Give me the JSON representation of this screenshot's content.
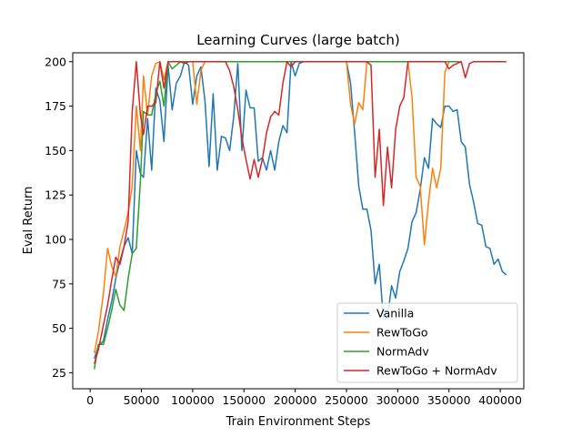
{
  "chart_data": {
    "type": "line",
    "title": "Learning Curves (large batch)",
    "xlabel": "Train Environment Steps",
    "ylabel": "Eval Return",
    "xlim": [
      -17000,
      423000
    ],
    "ylim": [
      16,
      205
    ],
    "xticks": [
      0,
      50000,
      100000,
      150000,
      200000,
      250000,
      300000,
      350000,
      400000
    ],
    "yticks": [
      25,
      50,
      75,
      100,
      125,
      150,
      175,
      200
    ],
    "grid": false,
    "legend_position": "lower-right",
    "series": [
      {
        "name": "Vanilla",
        "color": "#1f77b4",
        "x": [
          4000,
          8000,
          13000,
          17000,
          21000,
          25000,
          29000,
          33000,
          37000,
          41000,
          45000,
          49000,
          52000,
          56000,
          60000,
          64000,
          68000,
          72000,
          76000,
          80000,
          84000,
          88000,
          92000,
          96000,
          100000,
          104000,
          108000,
          112000,
          116000,
          120000,
          124000,
          128000,
          132000,
          136000,
          140000,
          144000,
          148000,
          152000,
          156000,
          160000,
          164000,
          168000,
          172000,
          176000,
          180000,
          184000,
          188000,
          192000,
          196000,
          200000,
          204000,
          208000,
          250000,
          254000,
          258000,
          262000,
          266000,
          270000,
          274000,
          278000,
          282000,
          286000,
          290000,
          294000,
          298000,
          302000,
          306000,
          310000,
          314000,
          318000,
          322000,
          326000,
          330000,
          334000,
          338000,
          342000,
          346000,
          350000,
          354000,
          358000,
          362000,
          366000,
          370000,
          374000,
          378000,
          382000,
          386000,
          390000,
          394000,
          398000,
          402000,
          406000
        ],
        "y": [
          33,
          40,
          43,
          55,
          65,
          78,
          88,
          96,
          101,
          92,
          150,
          137,
          135,
          168,
          139,
          185,
          178,
          155,
          198,
          173,
          188,
          192,
          200,
          198,
          176,
          192,
          197,
          178,
          141,
          182,
          139,
          158,
          157,
          150,
          169,
          199,
          150,
          184,
          174,
          174,
          144,
          146,
          139,
          150,
          139,
          155,
          164,
          160,
          200,
          192,
          199,
          200,
          200,
          188,
          160,
          130,
          117,
          117,
          105,
          75,
          86,
          55,
          56,
          74,
          67,
          82,
          88,
          95,
          110,
          115,
          128,
          146,
          140,
          168,
          165,
          163,
          175,
          175,
          172,
          173,
          155,
          152,
          131,
          121,
          109,
          108,
          96,
          95,
          86,
          89,
          82,
          80
        ]
      },
      {
        "name": "RewToGo",
        "color": "#ff7f0e",
        "x": [
          4000,
          8000,
          13000,
          17000,
          21000,
          25000,
          29000,
          33000,
          37000,
          41000,
          45000,
          49000,
          52000,
          56000,
          60000,
          64000,
          68000,
          72000,
          76000,
          80000,
          84000,
          88000,
          92000,
          96000,
          100000,
          104000,
          108000,
          112000,
          116000,
          250000,
          254000,
          258000,
          262000,
          266000,
          270000,
          274000,
          278000,
          282000,
          286000,
          290000,
          294000,
          298000,
          302000,
          306000,
          310000,
          314000,
          318000,
          322000,
          326000,
          330000,
          334000,
          338000,
          342000,
          346000,
          350000,
          354000,
          358000,
          362000
        ],
        "y": [
          36,
          48,
          70,
          95,
          85,
          79,
          96,
          105,
          115,
          130,
          175,
          150,
          192,
          170,
          192,
          199,
          200,
          190,
          200,
          200,
          200,
          200,
          200,
          200,
          200,
          176,
          195,
          200,
          200,
          200,
          176,
          165,
          177,
          173,
          200,
          200,
          200,
          200,
          200,
          200,
          200,
          200,
          200,
          200,
          200,
          180,
          135,
          130,
          97,
          121,
          140,
          129,
          140,
          194,
          200,
          200,
          200,
          200
        ]
      },
      {
        "name": "NormAdv",
        "color": "#2ca02c",
        "x": [
          4000,
          8000,
          13000,
          17000,
          21000,
          25000,
          29000,
          33000,
          37000,
          41000,
          45000,
          49000,
          52000,
          56000,
          60000,
          64000,
          68000,
          72000,
          76000,
          80000,
          84000,
          88000,
          92000,
          96000,
          100000,
          104000,
          108000,
          112000,
          116000,
          120000,
          200000,
          250000,
          300000,
          350000,
          360000
        ],
        "y": [
          27,
          41,
          41,
          50,
          60,
          72,
          63,
          60,
          78,
          92,
          95,
          133,
          172,
          170,
          170,
          182,
          189,
          175,
          200,
          196,
          198,
          200,
          200,
          200,
          200,
          200,
          200,
          200,
          200,
          200,
          200,
          200,
          200,
          200,
          200
        ]
      },
      {
        "name": "RewToGo + NormAdv",
        "color": "#d62728",
        "x": [
          4000,
          8000,
          13000,
          17000,
          21000,
          25000,
          29000,
          33000,
          37000,
          41000,
          45000,
          49000,
          52000,
          56000,
          60000,
          64000,
          68000,
          72000,
          76000,
          80000,
          84000,
          88000,
          92000,
          96000,
          100000,
          104000,
          108000,
          112000,
          116000,
          120000,
          124000,
          128000,
          132000,
          136000,
          140000,
          144000,
          148000,
          152000,
          156000,
          160000,
          164000,
          168000,
          172000,
          176000,
          180000,
          184000,
          188000,
          192000,
          196000,
          200000,
          204000,
          208000,
          250000,
          254000,
          258000,
          262000,
          266000,
          270000,
          274000,
          278000,
          282000,
          286000,
          290000,
          294000,
          298000,
          302000,
          306000,
          310000,
          314000,
          318000,
          322000,
          326000,
          330000,
          334000,
          338000,
          342000,
          346000,
          350000,
          354000,
          358000,
          362000,
          366000,
          370000,
          374000,
          378000,
          382000,
          386000,
          390000,
          394000,
          398000,
          402000,
          406000
        ],
        "y": [
          30,
          38,
          52,
          63,
          77,
          90,
          86,
          96,
          110,
          172,
          200,
          170,
          159,
          175,
          175,
          177,
          200,
          185,
          200,
          200,
          200,
          200,
          199,
          200,
          200,
          200,
          200,
          200,
          200,
          200,
          200,
          200,
          200,
          195,
          186,
          173,
          157,
          145,
          134,
          145,
          135,
          145,
          160,
          169,
          172,
          170,
          188,
          200,
          197,
          200,
          200,
          200,
          200,
          200,
          200,
          200,
          200,
          200,
          198,
          135,
          162,
          119,
          152,
          129,
          162,
          175,
          180,
          200,
          200,
          200,
          200,
          200,
          200,
          200,
          200,
          200,
          200,
          196,
          198,
          199,
          200,
          191,
          199,
          200,
          200,
          200,
          200,
          200,
          200,
          200,
          200,
          200
        ]
      }
    ]
  }
}
